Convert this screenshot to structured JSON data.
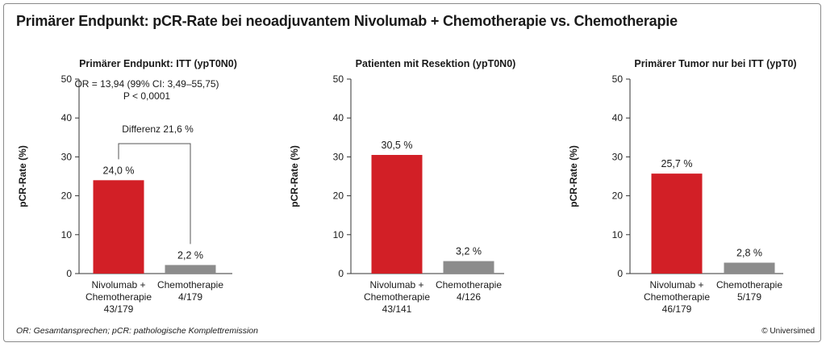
{
  "header": {
    "title": "Primärer Endpunkt: pCR-Rate bei neoadjuvantem Nivolumab + Chemotherapie vs. Chemotherapie"
  },
  "footer": {
    "footnote": "OR: Gesamtansprechen; pCR: pathologische Komplettremission",
    "credit": "© Universimed"
  },
  "colors": {
    "nivolumab": "#d21f26",
    "chemo": "#8c8c8c",
    "axis": "#333333",
    "bracket": "#555555"
  },
  "chart_data": [
    {
      "type": "bar",
      "title": "Primärer Endpunkt: ITT (ypT0N0)",
      "ylabel": "pCR-Rate (%)",
      "ylim": [
        0,
        50
      ],
      "yticks": [
        "0",
        "10",
        "20",
        "30",
        "40",
        "50"
      ],
      "categories": [
        [
          "Nivolumab +",
          "Chemotherapie",
          "43/179"
        ],
        [
          "Chemotherapie",
          "4/179"
        ]
      ],
      "values": [
        24.0,
        2.2
      ],
      "value_labels": [
        "24,0 %",
        "2,2 %"
      ],
      "annotations": {
        "stats": [
          "OR = 13,94 (99% CI: 3,49–55,75)",
          "P < 0,0001"
        ],
        "difference": "Differenz 21,6 %"
      }
    },
    {
      "type": "bar",
      "title": "Patienten mit Resektion (ypT0N0)",
      "ylabel": "pCR-Rate (%)",
      "ylim": [
        0,
        50
      ],
      "yticks": [
        "0",
        "10",
        "20",
        "30",
        "40",
        "50"
      ],
      "categories": [
        [
          "Nivolumab +",
          "Chemotherapie",
          "43/141"
        ],
        [
          "Chemotherapie",
          "4/126"
        ]
      ],
      "values": [
        30.5,
        3.2
      ],
      "value_labels": [
        "30,5 %",
        "3,2 %"
      ]
    },
    {
      "type": "bar",
      "title": "Primärer Tumor nur bei ITT (ypT0)",
      "ylabel": "pCR-Rate (%)",
      "ylim": [
        0,
        50
      ],
      "yticks": [
        "0",
        "10",
        "20",
        "30",
        "40",
        "50"
      ],
      "categories": [
        [
          "Nivolumab +",
          "Chemotherapie",
          "46/179"
        ],
        [
          "Chemotherapie",
          "5/179"
        ]
      ],
      "values": [
        25.7,
        2.8
      ],
      "value_labels": [
        "25,7 %",
        "2,8 %"
      ]
    }
  ]
}
